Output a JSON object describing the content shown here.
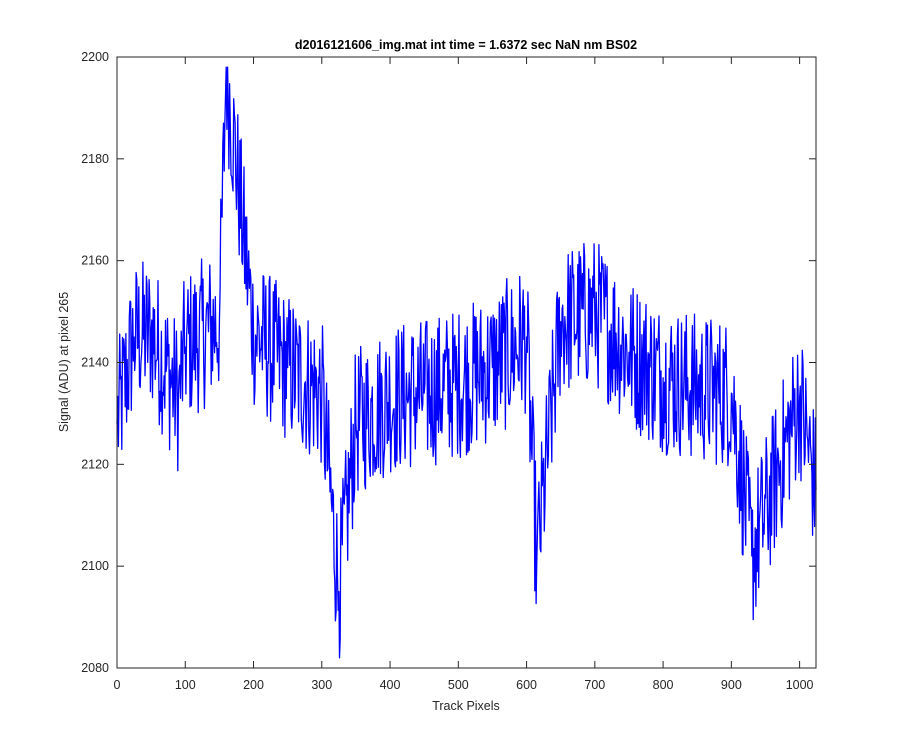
{
  "chart_data": {
    "type": "line",
    "title": "d2016121606_img.mat int time = 1.6372 sec  NaN nm BS02",
    "xlabel": "Track Pixels",
    "ylabel": "Signal (ADU) at pixel 265",
    "xlim": [
      0,
      1024
    ],
    "ylim": [
      2080,
      2200
    ],
    "xticks": [
      0,
      100,
      200,
      300,
      400,
      500,
      600,
      700,
      800,
      900,
      1000
    ],
    "yticks": [
      2080,
      2100,
      2120,
      2140,
      2160,
      2180,
      2200
    ],
    "grid": false,
    "line_color": "#0000ff",
    "series": [
      {
        "x": [
          0,
          25,
          50,
          90,
          100,
          150,
          160,
          200,
          250,
          300,
          325,
          350,
          400,
          450,
          500,
          550,
          600,
          615,
          650,
          700,
          750,
          800,
          850,
          900,
          930,
          1000,
          1024
        ],
        "y": [
          2128,
          2145,
          2146,
          2133,
          2143,
          2148,
          2198,
          2146,
          2139,
          2134,
          2095,
          2128,
          2133,
          2134,
          2136,
          2139,
          2145,
          2101,
          2148,
          2150,
          2142,
          2137,
          2135,
          2134,
          2102,
          2133,
          2115
        ]
      }
    ]
  }
}
